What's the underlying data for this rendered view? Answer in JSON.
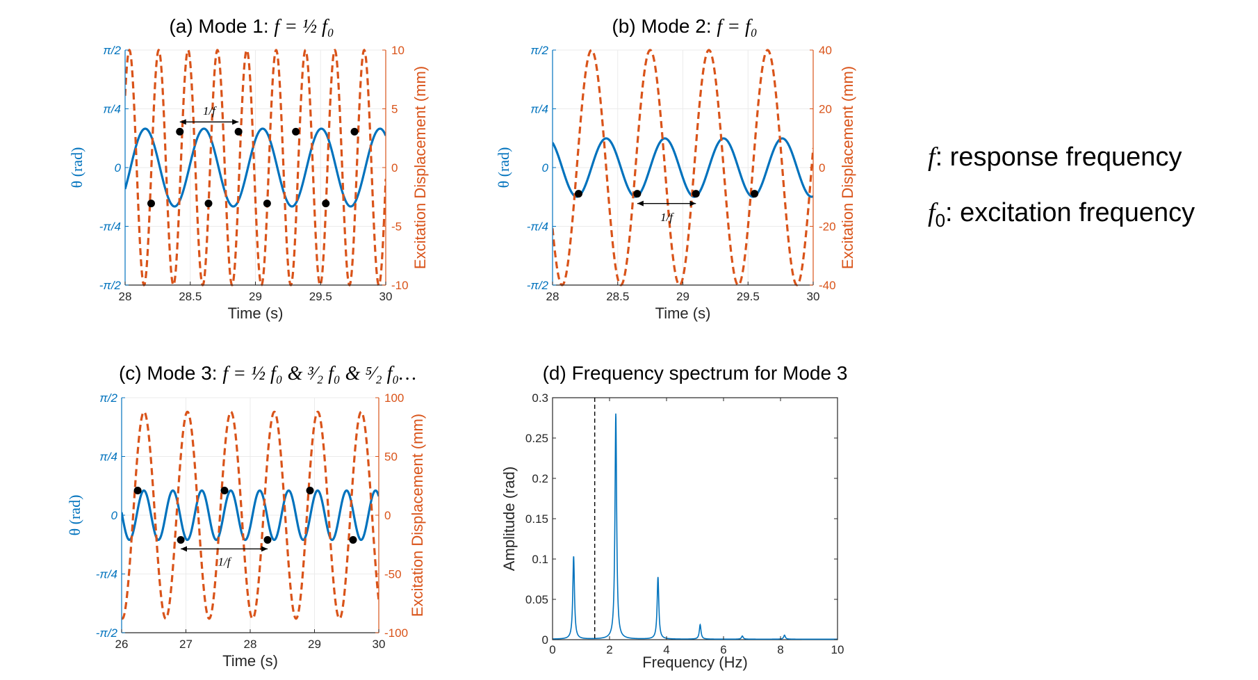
{
  "colors": {
    "blue": "#0072BD",
    "orange": "#D95319",
    "grid": "#ebebeb",
    "black": "#000000"
  },
  "legend": {
    "f_symbol": "f",
    "f_text": ": response frequency",
    "f0_symbol": "f",
    "f0_sub": "0",
    "f0_text": ": excitation frequency"
  },
  "chart_data": [
    {
      "id": "a",
      "type": "line",
      "title": {
        "prefix": "(a) Mode 1: ",
        "expr": "f = ½ f₀"
      },
      "xlabel": "Time (s)",
      "ylabel_left": "θ (rad)",
      "ylabel_right": "Excitation Displacement (mm)",
      "xlim": [
        28,
        30
      ],
      "xticks": [
        28,
        28.5,
        29,
        29.5,
        30
      ],
      "xtick_labels": [
        "28",
        "28.5",
        "29",
        "29.5",
        "30"
      ],
      "ylim_left": [
        -1.5708,
        1.5708
      ],
      "yticks_left_labels": [
        "-π/2",
        "-π/4",
        "0",
        "π/4",
        "π/2"
      ],
      "ylim_right": [
        -10,
        10
      ],
      "yticks_right": [
        -10,
        -5,
        0,
        5,
        10
      ],
      "yticks_right_labels": [
        "-10",
        "-5",
        "0",
        "5",
        "10"
      ],
      "series": [
        {
          "name": "θ",
          "axis": "left",
          "style": "solid",
          "amplitude": 0.52,
          "freq": 2.22,
          "phase": -1.59
        },
        {
          "name": "Excitation",
          "axis": "right",
          "style": "dashed",
          "amplitude": 10,
          "freq": 4.44,
          "phase": 4.93
        }
      ],
      "dots": [
        {
          "x": 28.2,
          "y": -0.48
        },
        {
          "x": 28.42,
          "y": 0.48
        },
        {
          "x": 28.64,
          "y": -0.48
        },
        {
          "x": 28.87,
          "y": 0.48
        },
        {
          "x": 29.09,
          "y": -0.48
        },
        {
          "x": 29.31,
          "y": 0.48
        },
        {
          "x": 29.54,
          "y": -0.48
        },
        {
          "x": 29.76,
          "y": 0.48
        }
      ],
      "arrow": {
        "x1": 28.42,
        "x2": 28.87,
        "y": 0.61,
        "label": "1/f",
        "label_y": 0.76
      }
    },
    {
      "id": "b",
      "type": "line",
      "title": {
        "prefix": "(b) Mode 2: ",
        "expr": "f = f₀"
      },
      "xlabel": "Time (s)",
      "ylabel_left": "θ (rad)",
      "ylabel_right": "Excitation Displacement (mm)",
      "xlim": [
        28,
        30
      ],
      "xticks": [
        28,
        28.5,
        29,
        29.5,
        30
      ],
      "xtick_labels": [
        "28",
        "28.5",
        "29",
        "29.5",
        "30"
      ],
      "ylim_left": [
        -1.5708,
        1.5708
      ],
      "yticks_left_labels": [
        "-π/2",
        "-π/4",
        "0",
        "π/4",
        "π/2"
      ],
      "ylim_right": [
        -40,
        40
      ],
      "yticks_right": [
        -40,
        -20,
        0,
        20,
        40
      ],
      "yticks_right_labels": [
        "-40",
        "-20",
        "0",
        "20",
        "40"
      ],
      "series": [
        {
          "name": "θ",
          "axis": "left",
          "style": "solid",
          "amplitude": 0.39,
          "freq": 2.22,
          "phase": 1.11
        },
        {
          "name": "Excitation",
          "axis": "right",
          "style": "dashed",
          "amplitude": 40,
          "freq": 2.22,
          "phase": 2.68
        }
      ],
      "dots": [
        {
          "x": 28.2,
          "y": -0.35
        },
        {
          "x": 28.65,
          "y": -0.35
        },
        {
          "x": 29.1,
          "y": -0.35
        },
        {
          "x": 29.55,
          "y": -0.35
        }
      ],
      "arrow": {
        "x1": 28.65,
        "x2": 29.1,
        "y": -0.48,
        "label": "1/f",
        "label_y": -0.66
      }
    },
    {
      "id": "c",
      "type": "line",
      "title": {
        "prefix": "(c) Mode 3: ",
        "expr": "f = ½ f₀ & ³⁄₂ f₀ & ⁵⁄₂ f₀…"
      },
      "xlabel": "Time (s)",
      "ylabel_left": "θ (rad)",
      "ylabel_right": "Excitation Displacement (mm)",
      "xlim": [
        26,
        30
      ],
      "xticks": [
        26,
        27,
        28,
        29,
        30
      ],
      "xtick_labels": [
        "26",
        "27",
        "28",
        "29",
        "30"
      ],
      "ylim_left": [
        -1.5708,
        1.5708
      ],
      "yticks_left_labels": [
        "-π/2",
        "-π/4",
        "0",
        "π/4",
        "π/2"
      ],
      "ylim_right": [
        -100,
        100
      ],
      "yticks_right": [
        -100,
        -50,
        0,
        50,
        100
      ],
      "yticks_right_labels": [
        "-100",
        "-50",
        "0",
        "50",
        "100"
      ],
      "series": [
        {
          "name": "θ",
          "axis": "left",
          "style": "solid",
          "amplitude": 0.33,
          "freq": 2.22,
          "phase": -1.5
        },
        {
          "name": "Excitation",
          "axis": "right",
          "style": "dashed",
          "amplitude": 88,
          "freq": 1.48,
          "phase": 1.6
        }
      ],
      "dots": [
        {
          "x": 26.25,
          "y": 0.33
        },
        {
          "x": 26.92,
          "y": -0.33
        },
        {
          "x": 27.6,
          "y": 0.33
        },
        {
          "x": 28.27,
          "y": -0.33
        },
        {
          "x": 28.93,
          "y": 0.33
        },
        {
          "x": 29.6,
          "y": -0.33
        }
      ],
      "arrow": {
        "x1": 26.92,
        "x2": 28.27,
        "y": -0.45,
        "label": "1/f",
        "label_y": -0.62
      }
    },
    {
      "id": "d",
      "type": "line",
      "title": {
        "prefix": "(d) Frequency spectrum for Mode 3",
        "expr": ""
      },
      "xlabel": "Frequency (Hz)",
      "ylabel_left": "Amplitude (rad)",
      "xlim": [
        0,
        10
      ],
      "xticks": [
        0,
        2,
        4,
        6,
        8,
        10
      ],
      "xtick_labels": [
        "0",
        "2",
        "4",
        "6",
        "8",
        "10"
      ],
      "ylim_left": [
        0,
        0.3
      ],
      "yticks_left": [
        0,
        0.05,
        0.1,
        0.15,
        0.2,
        0.25,
        0.3
      ],
      "yticks_left_labels": [
        "0",
        "0.05",
        "0.1",
        "0.15",
        "0.2",
        "0.25",
        "0.3"
      ],
      "vline_x": 1.48,
      "peaks": [
        {
          "x": 0.74,
          "y": 0.103
        },
        {
          "x": 2.22,
          "y": 0.28
        },
        {
          "x": 3.7,
          "y": 0.077
        },
        {
          "x": 5.18,
          "y": 0.018
        },
        {
          "x": 6.66,
          "y": 0.004
        },
        {
          "x": 8.14,
          "y": 0.005
        }
      ]
    }
  ]
}
